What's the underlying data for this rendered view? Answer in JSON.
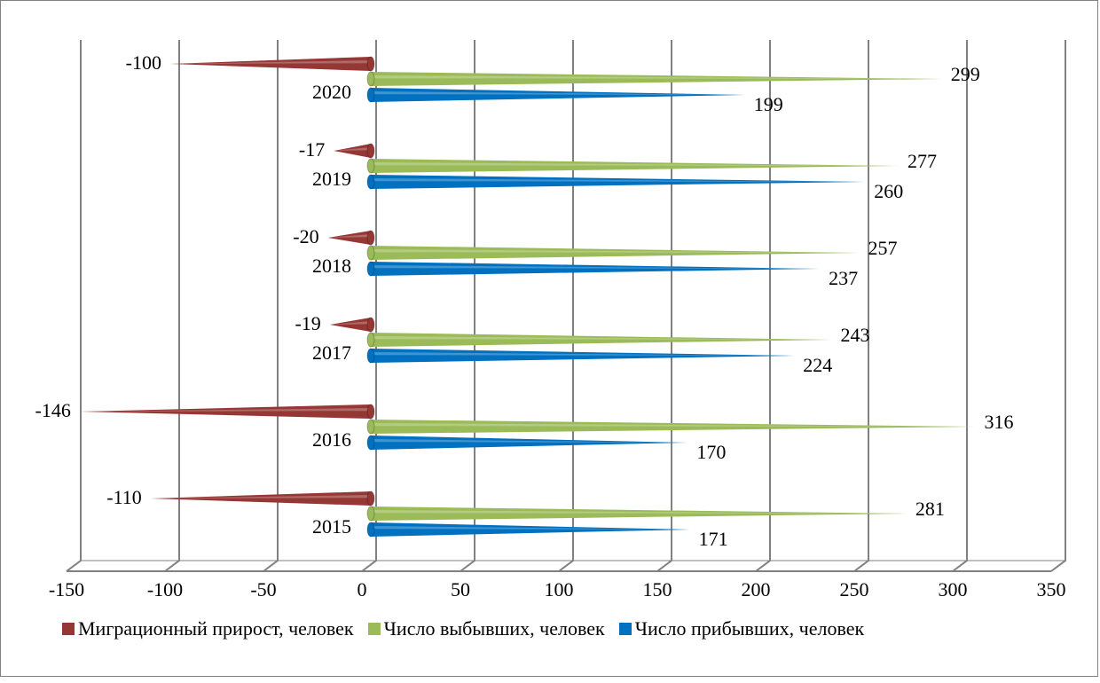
{
  "chart_data": {
    "type": "bar",
    "orientation": "horizontal",
    "categories": [
      "2015",
      "2016",
      "2017",
      "2018",
      "2019",
      "2020"
    ],
    "series": [
      {
        "name": "Миграционный прирост, человек",
        "color": "#953735",
        "values": [
          -110,
          -146,
          -19,
          -20,
          -17,
          -100
        ]
      },
      {
        "name": "Число выбывших, человек",
        "color": "#9bbb59",
        "values": [
          281,
          316,
          243,
          257,
          277,
          299
        ]
      },
      {
        "name": "Число прибывших, человек",
        "color": "#0070c0",
        "values": [
          171,
          170,
          224,
          237,
          260,
          199
        ]
      }
    ],
    "data_labels": {
      "2015": [
        "-110",
        "281",
        "171"
      ],
      "2016": [
        "-146",
        "316",
        "170"
      ],
      "2017": [
        "-19",
        "243",
        "224"
      ],
      "2018": [
        "-20",
        "257",
        "237"
      ],
      "2019": [
        "-17",
        "277",
        "260"
      ],
      "2020": [
        "-100",
        "299",
        "199"
      ]
    },
    "x_ticks": [
      "-150",
      "-100",
      "-50",
      "0",
      "50",
      "100",
      "150",
      "200",
      "250",
      "300",
      "350"
    ],
    "xlim": [
      -150,
      350
    ],
    "grid": true,
    "legend_position": "bottom",
    "title": "",
    "xlabel": "",
    "ylabel": ""
  }
}
